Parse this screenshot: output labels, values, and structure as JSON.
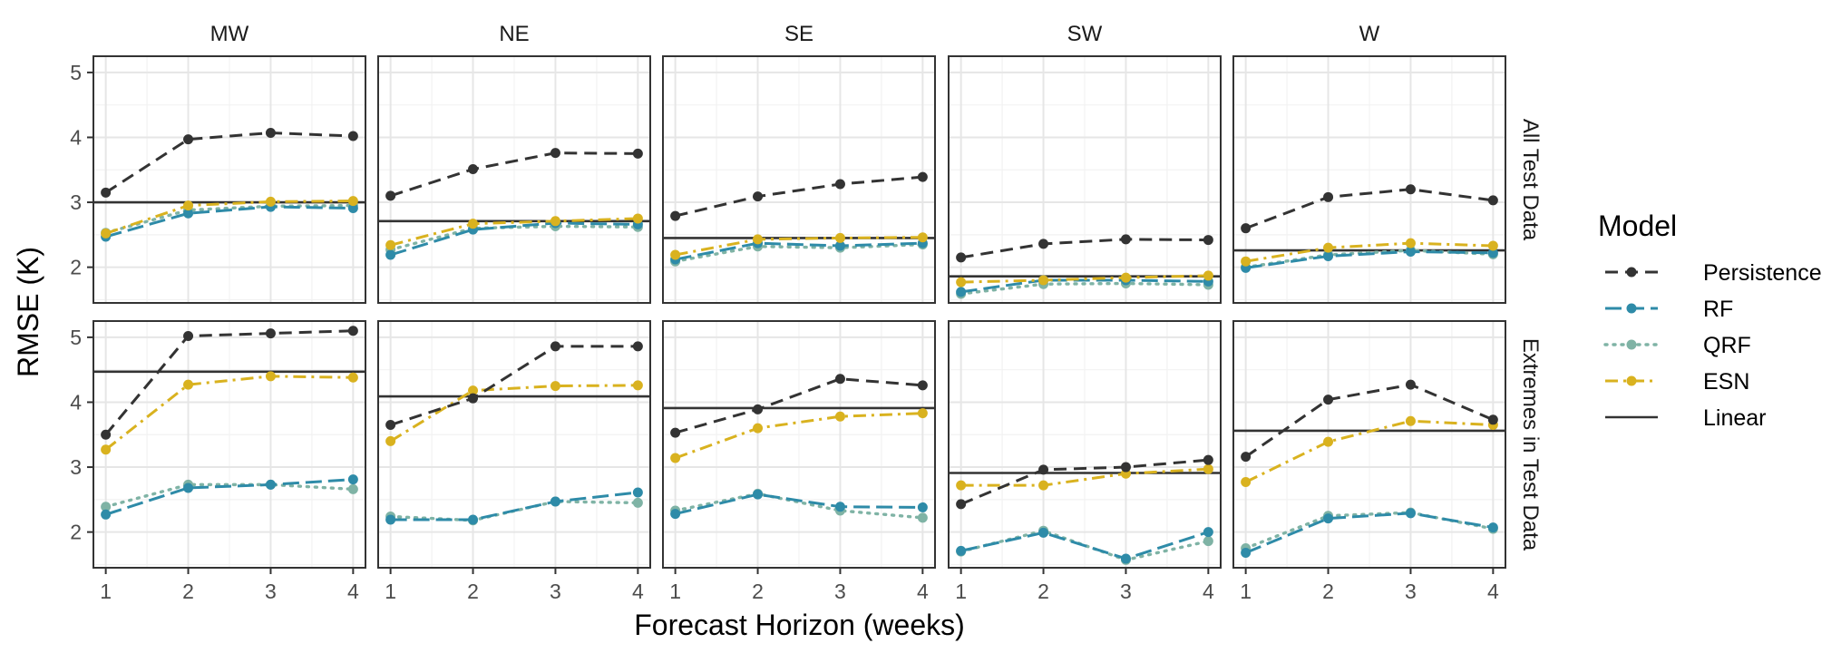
{
  "chart_data": {
    "type": "line",
    "xlabel": "Forecast Horizon (weeks)",
    "ylabel": "RMSE (K)",
    "x": [
      1,
      2,
      3,
      4
    ],
    "xlim": [
      0.85,
      4.15
    ],
    "ylim": [
      1.45,
      5.25
    ],
    "yticks": [
      2,
      3,
      4,
      5
    ],
    "grid": true,
    "legend": {
      "title": "Model",
      "position": "right",
      "entries": [
        {
          "name": "Persistence",
          "color": "#333333",
          "dash": "dashed",
          "marker": true
        },
        {
          "name": "RF",
          "color": "#2E8BA8",
          "dash": "longdash",
          "marker": true
        },
        {
          "name": "QRF",
          "color": "#7FB3A5",
          "dash": "dotted",
          "marker": true
        },
        {
          "name": "ESN",
          "color": "#D9B21F",
          "dash": "dotdash",
          "marker": true
        },
        {
          "name": "Linear",
          "color": "#333333",
          "dash": "solid",
          "marker": false
        }
      ]
    },
    "columns": [
      "MW",
      "NE",
      "SE",
      "SW",
      "W"
    ],
    "rows": [
      "All Test Data",
      "Extremes in Test Data"
    ],
    "panels": [
      [
        {
          "Persistence": [
            3.15,
            3.97,
            4.07,
            4.02
          ],
          "RF": [
            2.47,
            2.83,
            2.93,
            2.91
          ],
          "QRF": [
            2.53,
            2.88,
            2.94,
            2.95
          ],
          "ESN": [
            2.52,
            2.95,
            3.01,
            3.02
          ],
          "Linear": 3.0
        },
        {
          "Persistence": [
            3.1,
            3.51,
            3.76,
            3.75
          ],
          "RF": [
            2.19,
            2.58,
            2.68,
            2.66
          ],
          "QRF": [
            2.27,
            2.6,
            2.63,
            2.62
          ],
          "ESN": [
            2.34,
            2.67,
            2.71,
            2.75
          ],
          "Linear": 2.71
        },
        {
          "Persistence": [
            2.79,
            3.09,
            3.28,
            3.39
          ],
          "RF": [
            2.12,
            2.37,
            2.33,
            2.37
          ],
          "QRF": [
            2.09,
            2.32,
            2.3,
            2.35
          ],
          "ESN": [
            2.19,
            2.43,
            2.45,
            2.46
          ],
          "Linear": 2.45
        },
        {
          "Persistence": [
            2.15,
            2.36,
            2.43,
            2.42
          ],
          "RF": [
            1.62,
            1.8,
            1.8,
            1.78
          ],
          "QRF": [
            1.59,
            1.74,
            1.75,
            1.73
          ],
          "ESN": [
            1.77,
            1.8,
            1.84,
            1.87
          ],
          "Linear": 1.86
        },
        {
          "Persistence": [
            2.6,
            3.08,
            3.2,
            3.03
          ],
          "RF": [
            1.99,
            2.17,
            2.24,
            2.22
          ],
          "QRF": [
            2.0,
            2.19,
            2.26,
            2.2
          ],
          "ESN": [
            2.09,
            2.3,
            2.37,
            2.33
          ],
          "Linear": 2.26
        }
      ],
      [
        {
          "Persistence": [
            3.5,
            5.02,
            5.06,
            5.1
          ],
          "RF": [
            2.27,
            2.68,
            2.73,
            2.81
          ],
          "QRF": [
            2.39,
            2.73,
            2.73,
            2.66
          ],
          "ESN": [
            3.27,
            4.27,
            4.4,
            4.38
          ],
          "Linear": 4.47
        },
        {
          "Persistence": [
            3.65,
            4.06,
            4.86,
            4.86
          ],
          "RF": [
            2.19,
            2.19,
            2.47,
            2.61
          ],
          "QRF": [
            2.24,
            2.18,
            2.47,
            2.45
          ],
          "ESN": [
            3.4,
            4.18,
            4.25,
            4.26
          ],
          "Linear": 4.09
        },
        {
          "Persistence": [
            3.53,
            3.89,
            4.36,
            4.26
          ],
          "RF": [
            2.28,
            2.58,
            2.39,
            2.38
          ],
          "QRF": [
            2.33,
            2.59,
            2.33,
            2.22
          ],
          "ESN": [
            3.14,
            3.6,
            3.78,
            3.83
          ],
          "Linear": 3.91
        },
        {
          "Persistence": [
            2.43,
            2.96,
            3.0,
            3.11
          ],
          "RF": [
            1.71,
            1.99,
            1.59,
            2.0
          ],
          "QRF": [
            1.7,
            2.02,
            1.57,
            1.86
          ],
          "ESN": [
            2.72,
            2.72,
            2.9,
            2.97
          ],
          "Linear": 2.91
        },
        {
          "Persistence": [
            3.16,
            4.04,
            4.27,
            3.73
          ],
          "RF": [
            1.68,
            2.21,
            2.29,
            2.07
          ],
          "QRF": [
            1.75,
            2.25,
            2.3,
            2.05
          ],
          "ESN": [
            2.77,
            3.39,
            3.71,
            3.65
          ],
          "Linear": 3.56
        }
      ]
    ]
  }
}
